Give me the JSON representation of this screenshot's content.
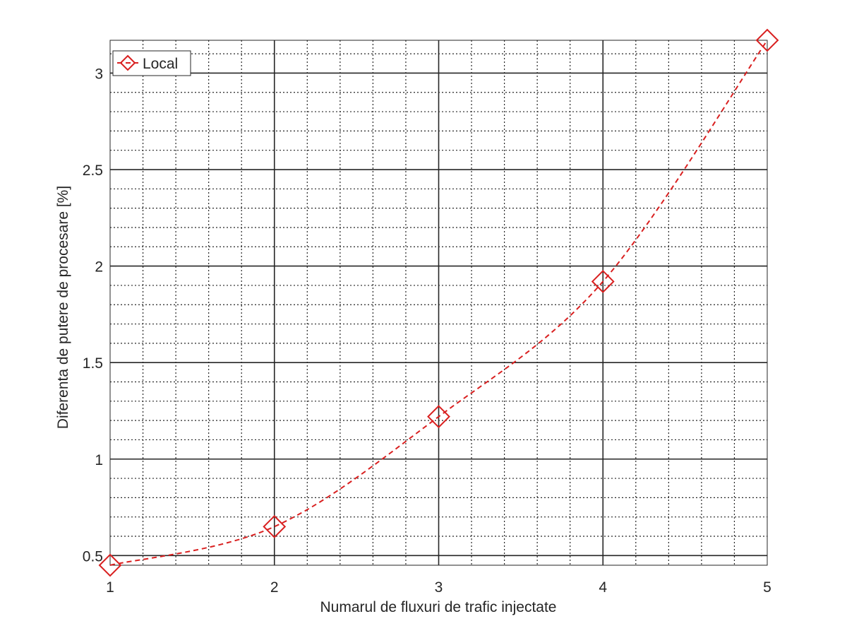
{
  "chart_data": {
    "type": "line",
    "title": "",
    "xlabel": "Numarul de fluxuri de trafic injectate",
    "ylabel": "Diferenta de putere de procesare [%]",
    "xlim": [
      1,
      5
    ],
    "ylim": [
      0.45,
      3.17
    ],
    "x_ticks": [
      "1",
      "2",
      "3",
      "4",
      "5"
    ],
    "y_ticks": [
      "0.5",
      "1",
      "1.5",
      "2",
      "2.5",
      "3"
    ],
    "grid": true,
    "minor_grid": true,
    "legend_position": "top-left",
    "series": [
      {
        "name": "Local",
        "color": "#d92020",
        "line_style": "dashed",
        "marker": "diamond",
        "x": [
          1,
          2,
          3,
          4,
          5
        ],
        "y": [
          0.45,
          0.65,
          1.22,
          1.92,
          3.17
        ]
      }
    ]
  }
}
